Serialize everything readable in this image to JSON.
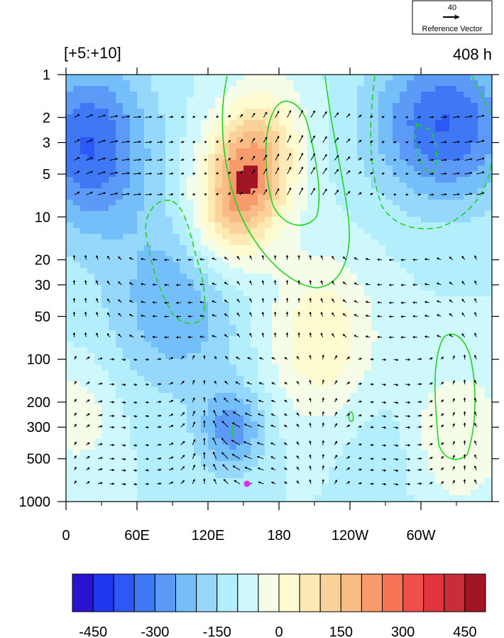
{
  "chart_data": {
    "type": "heatmap",
    "title_left": "[+5:+10]",
    "title_right": "408 h",
    "x_ticks": [
      "0",
      "60E",
      "120E",
      "180",
      "120W",
      "60W"
    ],
    "x_tick_lon": [
      0,
      60,
      120,
      180,
      240,
      300
    ],
    "x_range_lon": [
      0,
      360
    ],
    "y_ticks": [
      "1",
      "2",
      "3",
      "5",
      "10",
      "20",
      "30",
      "50",
      "100",
      "200",
      "300",
      "500",
      "1000"
    ],
    "y_tick_values": [
      1,
      2,
      3,
      5,
      10,
      20,
      30,
      50,
      100,
      200,
      300,
      500,
      1000
    ],
    "y_range": [
      1,
      1000
    ],
    "y_scale": "log",
    "y_reversed": true,
    "reference_vector": {
      "magnitude": "40",
      "label": "Reference Vector"
    },
    "colorbar": {
      "labels": [
        "-450",
        "-300",
        "-150",
        "0",
        "150",
        "300",
        "450"
      ],
      "levels": [
        -525,
        -450,
        -375,
        -300,
        -225,
        -150,
        -75,
        0,
        75,
        150,
        225,
        300,
        375,
        450,
        525
      ],
      "colors": [
        "#2b14d0",
        "#1f35f0",
        "#2c58f5",
        "#3f78f5",
        "#5b9af7",
        "#74bff9",
        "#95d8fb",
        "#b3eefc",
        "#cff8fc",
        "#f5fde8",
        "#fffbd0",
        "#fde9b3",
        "#fbd39a",
        "#f9bc86",
        "#f79b6d",
        "#f47456",
        "#ee4f48",
        "#e2343c",
        "#c82e37",
        "#a11626"
      ]
    },
    "marker": {
      "lon": 153,
      "level": 750,
      "color": "#e82be8"
    }
  }
}
